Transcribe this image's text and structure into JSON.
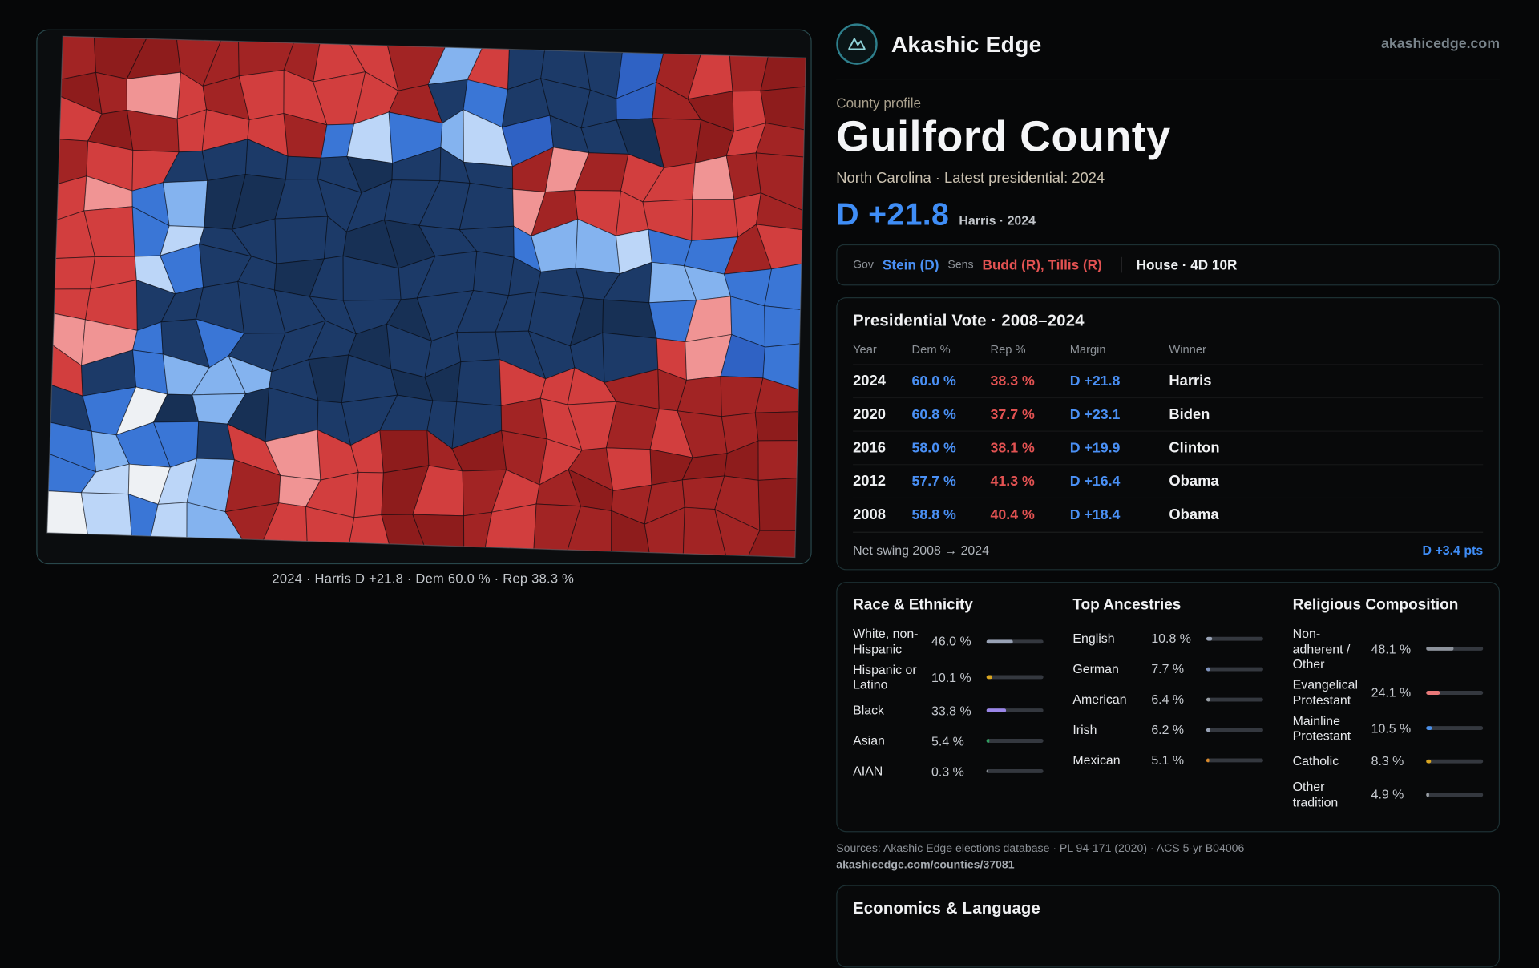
{
  "site": {
    "brand": "Akashic Edge",
    "domain": "akashicedge.com"
  },
  "map": {
    "caption": "2024 · Harris D +21.8 · Dem 60.0 % · Rep 38.3 %",
    "palette": {
      "navy": "#1c3a68",
      "navy2": "#173055",
      "royal": "#2f62c4",
      "blue": "#3a76d6",
      "lightblue": "#84b3ef",
      "paleblue": "#bcd6f8",
      "white": "#eef1f4",
      "salmon": "#f09494",
      "red": "#d23e3e",
      "darkred": "#a22424",
      "deepred": "#8e1c1c"
    }
  },
  "profile": {
    "kicker": "County profile",
    "title": "Guilford County",
    "subtitle": "North Carolina · Latest presidential: 2024",
    "headline_margin": "D +21.8",
    "headline_context": "Harris · 2024",
    "officials": {
      "gov_label": "Gov",
      "gov_value": "Stein (D)",
      "sens_label": "Sens",
      "sens_value": "Budd (R), Tillis (R)",
      "house_value": "House · 4D 10R"
    }
  },
  "presidential": {
    "title": "Presidential Vote · 2008–2024",
    "columns": [
      "Year",
      "Dem %",
      "Rep %",
      "Margin",
      "Winner"
    ],
    "rows": [
      {
        "year": "2024",
        "dem": "60.0 %",
        "rep": "38.3 %",
        "margin": "D +21.8",
        "winner": "Harris"
      },
      {
        "year": "2020",
        "dem": "60.8 %",
        "rep": "37.7 %",
        "margin": "D +23.1",
        "winner": "Biden"
      },
      {
        "year": "2016",
        "dem": "58.0 %",
        "rep": "38.1 %",
        "margin": "D +19.9",
        "winner": "Clinton"
      },
      {
        "year": "2012",
        "dem": "57.7 %",
        "rep": "41.3 %",
        "margin": "D +16.4",
        "winner": "Obama"
      },
      {
        "year": "2008",
        "dem": "58.8 %",
        "rep": "40.4 %",
        "margin": "D +18.4",
        "winner": "Obama"
      }
    ],
    "net_swing_label": "Net swing 2008 → 2024",
    "net_swing_value": "D +3.4 pts"
  },
  "demographics": {
    "race": {
      "title": "Race & Ethnicity",
      "rows": [
        {
          "label": "White, non-Hispanic",
          "value": "46.0 %",
          "pct": 46.0,
          "color": "#98a2b5"
        },
        {
          "label": "Hispanic or Latino",
          "value": "10.1 %",
          "pct": 10.1,
          "color": "#d9a520"
        },
        {
          "label": "Black",
          "value": "33.8 %",
          "pct": 33.8,
          "color": "#9a86e8"
        },
        {
          "label": "Asian",
          "value": "5.4 %",
          "pct": 5.4,
          "color": "#2f9e5f"
        },
        {
          "label": "AIAN",
          "value": "0.3 %",
          "pct": 0.3,
          "color": "#9aa0a6"
        }
      ]
    },
    "ancestries": {
      "title": "Top Ancestries",
      "rows": [
        {
          "label": "English",
          "value": "10.8 %",
          "pct": 10.8,
          "color": "#98a2b5"
        },
        {
          "label": "German",
          "value": "7.7 %",
          "pct": 7.7,
          "color": "#7f93bd"
        },
        {
          "label": "American",
          "value": "6.4 %",
          "pct": 6.4,
          "color": "#9aa0a6"
        },
        {
          "label": "Irish",
          "value": "6.2 %",
          "pct": 6.2,
          "color": "#98a2b5"
        },
        {
          "label": "Mexican",
          "value": "5.1 %",
          "pct": 5.1,
          "color": "#d9892b"
        }
      ]
    },
    "religion": {
      "title": "Religious Composition",
      "rows": [
        {
          "label": "Non-adherent / Other",
          "value": "48.1 %",
          "pct": 48.1,
          "color": "#8d939c"
        },
        {
          "label": "Evangelical Protestant",
          "value": "24.1 %",
          "pct": 24.1,
          "color": "#e87878"
        },
        {
          "label": "Mainline Protestant",
          "value": "10.5 %",
          "pct": 10.5,
          "color": "#4a8fe8"
        },
        {
          "label": "Catholic",
          "value": "8.3 %",
          "pct": 8.3,
          "color": "#d9a520"
        },
        {
          "label": "Other tradition",
          "value": "4.9 %",
          "pct": 4.9,
          "color": "#9aa0a6"
        }
      ]
    }
  },
  "footer": {
    "sources": "Sources: Akashic Edge elections database · PL 94-171 (2020) · ACS 5-yr B04006",
    "permalink": "akashicedge.com/counties/37081"
  },
  "economics": {
    "title": "Economics & Language"
  }
}
